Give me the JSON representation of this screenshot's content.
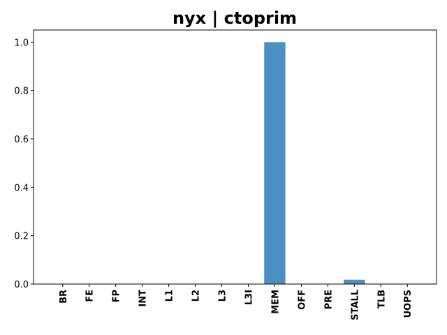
{
  "chart_data": {
    "type": "bar",
    "title": "nyx | ctoprim",
    "xlabel": "",
    "ylabel": "",
    "categories": [
      "BR",
      "FE",
      "FP",
      "INT",
      "L1",
      "L2",
      "L3",
      "L3I",
      "MEM",
      "OFF",
      "PRE",
      "STALL",
      "TLB",
      "UOPS"
    ],
    "values": [
      0,
      0,
      0,
      0,
      0,
      0,
      0,
      0,
      1.0,
      0,
      0,
      0.018,
      0,
      0
    ],
    "ylim": [
      0,
      1.05
    ],
    "yticks": [
      0.0,
      0.2,
      0.4,
      0.6,
      0.8,
      1.0
    ],
    "ytick_labels": [
      "0.0",
      "0.2",
      "0.4",
      "0.6",
      "0.8",
      "1.0"
    ],
    "bar_color": "#4a90c2",
    "grid": false,
    "legend": "none"
  }
}
